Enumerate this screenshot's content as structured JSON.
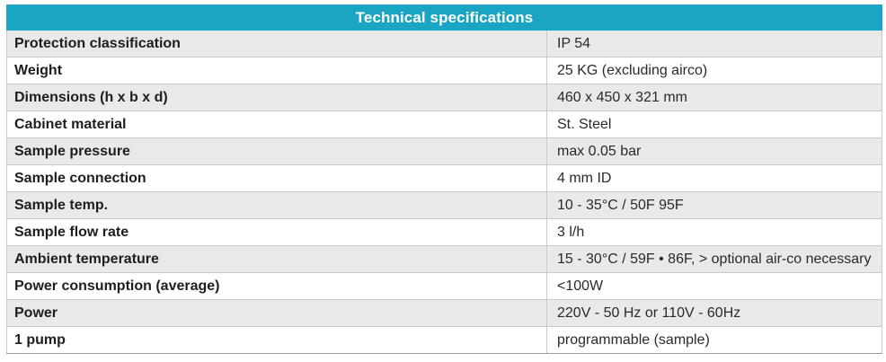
{
  "header": {
    "title": "Technical specifications"
  },
  "colors": {
    "header_bg": "#1aa5c4",
    "header_text": "#ffffff",
    "row_alt_bg": "#e9e9e9"
  },
  "specs": [
    {
      "label": "Protection classification",
      "value": "IP 54"
    },
    {
      "label": "Weight",
      "value": "25 KG (excluding airco)"
    },
    {
      "label": "Dimensions (h x b x d)",
      "value": "460 x 450 x 321 mm"
    },
    {
      "label": "Cabinet material",
      "value": "St. Steel"
    },
    {
      "label": "Sample pressure",
      "value": "max 0.05 bar"
    },
    {
      "label": "Sample connection",
      "value": "4 mm ID"
    },
    {
      "label": "Sample temp.",
      "value": "10 - 35°C / 50F 95F"
    },
    {
      "label": "Sample flow rate",
      "value": "3 l/h"
    },
    {
      "label": "Ambient temperature",
      "value": "15 - 30°C / 59F • 86F, > optional air-co necessary"
    },
    {
      "label": "Power consumption (average)",
      "value": "<100W"
    },
    {
      "label": "Power",
      "value": "220V - 50 Hz or 110V - 60Hz"
    },
    {
      "label": "1 pump",
      "value": "programmable (sample)"
    }
  ]
}
